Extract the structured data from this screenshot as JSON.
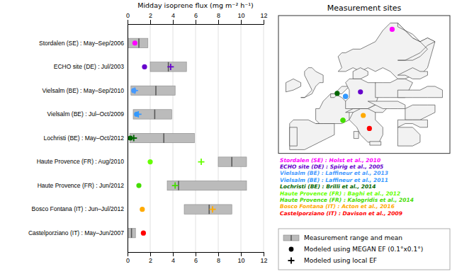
{
  "chart_data": [
    {
      "type": "bar",
      "orientation": "horizontal",
      "x_label": "Midday isoprene flux (mg m⁻² h⁻¹)",
      "categories": [
        "Stordalen (SE) : May–Sep/2006",
        "ECHO site (DE) : Jul/2003",
        "Vielsalm (BE) : May–Sep/2010",
        "Vielsalm (BE) : Jul–Oct/2009",
        "Lochristi (BE) : May–Oct/2012",
        "Haute Provence (FR) : Aug/2010",
        "Haute Provence (FR) : Jun/2012",
        "Bosco Fontana (IT) : Jun–Jul/2012",
        "Castelporziano (IT) : May–Jun/2007"
      ],
      "series": [
        {
          "name": "Measurement range and mean",
          "type": "range",
          "color": "#BBBBBB",
          "low": [
            0.0,
            2.0,
            0.3,
            0.5,
            0.2,
            8.0,
            3.5,
            5.0,
            0.0
          ],
          "high": [
            1.8,
            5.2,
            4.2,
            3.9,
            5.9,
            10.5,
            10.5,
            9.2,
            0.7
          ],
          "mean": [
            1.0,
            3.6,
            2.5,
            2.4,
            3.2,
            9.2,
            4.5,
            7.2,
            0.35
          ]
        },
        {
          "name": "Modeled using MEGAN EF (0.1°x0.1°)",
          "type": "scatter",
          "marker": "circle",
          "colors": [
            "#FF00FF",
            "#6600CC",
            "#4499FF",
            "#3399FF",
            "#006600",
            "#66FF00",
            "#44DD00",
            "#FFAA00",
            "#FF0000"
          ],
          "values": [
            0.65,
            1.5,
            0.55,
            0.8,
            0.25,
            2.0,
            1.0,
            1.3,
            1.4
          ]
        },
        {
          "name": "Modeled using local EF",
          "type": "scatter",
          "marker": "plus",
          "colors": [
            "#FF00FF",
            "#6600CC",
            "#4499FF",
            "#3399FF",
            "#006600",
            "#66FF00",
            "#44DD00",
            "#FFAA00",
            "#FF0000"
          ],
          "values": [
            null,
            3.8,
            0.65,
            0.95,
            0.55,
            6.5,
            4.2,
            7.5,
            null
          ]
        }
      ],
      "xlim": [
        0,
        12
      ],
      "xticks": [
        0,
        2,
        4,
        6,
        8,
        10,
        12
      ],
      "grid": true,
      "legend": "lower right"
    },
    {
      "type": "scatter",
      "title": "Measurement sites",
      "xlim": [
        -12,
        34
      ],
      "ylim": [
        35,
        72
      ],
      "tick_labels": false,
      "legend": "bottom",
      "series": [
        {
          "name": "Stordalen (SE) : Holst et al., 2010",
          "color": "#FF00FF",
          "x": [
            18.5
          ],
          "y": [
            68.3
          ]
        },
        {
          "name": "ECHO site (DE) : Spirig et al., 2005",
          "color": "#6600CC",
          "x": [
            10.0
          ],
          "y": [
            51.5
          ]
        },
        {
          "name": "Vielsalm (BE) : Laffineur et al., 2013",
          "color": "#4499FF",
          "x": [
            6.0
          ],
          "y": [
            50.3
          ]
        },
        {
          "name": "Vielsalm (BE) : Laffineur et al., 2011",
          "color": "#3399FF",
          "x": [
            6.0
          ],
          "y": [
            50.3
          ]
        },
        {
          "name": "Lochristi (BE) : Brilli et al., 2014",
          "color": "#006600",
          "x": [
            3.75
          ],
          "y": [
            51.1
          ]
        },
        {
          "name": "Haute Provence (FR) : Baghi et al., 2012",
          "color": "#66FF00",
          "x": [
            5.3
          ],
          "y": [
            43.9
          ]
        },
        {
          "name": "Haute Provence (FR) : Kalogridis et al., 2014",
          "color": "#44DD00",
          "x": [
            5.3
          ],
          "y": [
            43.9
          ]
        },
        {
          "name": "Bosco Fontana (IT) : Acton et al., 2016",
          "color": "#FFAA00",
          "x": [
            10.75
          ],
          "y": [
            45.2
          ]
        },
        {
          "name": "Castelporziano (IT) : Davison et al., 2009",
          "color": "#FF0000",
          "x": [
            12.4
          ],
          "y": [
            41.7
          ]
        }
      ],
      "outlines": {
        "color": "#F2F2F2",
        "polygons": [
          {
            "x": [
              4,
              5,
              4,
              5,
              6,
              8,
              10,
              12,
              14,
              16,
              18,
              20,
              22,
              24,
              26,
              28,
              30,
              28,
              26,
              24,
              22,
              20,
              18,
              16,
              14,
              12,
              10,
              8,
              6,
              4
            ],
            "y": [
              57,
              58,
              61,
              62,
              62,
              63,
              63,
              64,
              65,
              68,
              70,
              70,
              68,
              66,
              65,
              66,
              65,
              58,
              56,
              56,
              55,
              55,
              57,
              58,
              57,
              58,
              57,
              58,
              57,
              57
            ]
          },
          {
            "x": [
              20,
              22,
              24,
              26,
              28,
              30,
              28,
              26,
              24,
              22,
              20,
              20,
              22,
              24,
              26,
              28,
              26,
              24,
              22,
              20
            ],
            "y": [
              60,
              60,
              61,
              62,
              64,
              65,
              66,
              65,
              66,
              68,
              70,
              69,
              68,
              67,
              65,
              63,
              61,
              60,
              60,
              60
            ]
          },
          {
            "x": [
              8,
              10,
              12,
              12,
              10,
              8,
              8
            ],
            "y": [
              55,
              55,
              56,
              57,
              58,
              57,
              55
            ]
          },
          {
            "x": [
              -6,
              -5,
              -3,
              -2,
              -1,
              0,
              0,
              -2,
              -3,
              -4,
              -5,
              -5,
              -4,
              -3,
              -4,
              -5,
              -6
            ],
            "y": [
              50,
              50,
              51,
              53,
              54,
              54,
              56,
              57,
              58,
              58,
              57,
              56,
              54,
              52,
              51,
              50,
              50
            ]
          },
          {
            "x": [
              -10,
              -8,
              -6,
              -6,
              -8,
              -10,
              -10
            ],
            "y": [
              51.5,
              52,
              53,
              54,
              55,
              54,
              51.5
            ]
          },
          {
            "x": [
              -2,
              0,
              3,
              5,
              7,
              7,
              8,
              8,
              6,
              5,
              3,
              2,
              1,
              0,
              -1,
              -2,
              -2,
              -1,
              -2
            ],
            "y": [
              43,
              43,
              43,
              43,
              44,
              46,
              47,
              48,
              49,
              50,
              51,
              51,
              50,
              49,
              47,
              47,
              44,
              43,
              43
            ]
          },
          {
            "x": [
              -9,
              -7,
              -5,
              -3,
              -1,
              1,
              3,
              3,
              0,
              -2,
              -4,
              -8,
              -9,
              -9
            ],
            "y": [
              36,
              36,
              36,
              37,
              38,
              39,
              40,
              43,
              43,
              43,
              44,
              44,
              43,
              36
            ]
          },
          {
            "x": [
              -9,
              -7,
              -7,
              -9,
              -9
            ],
            "y": [
              37,
              37,
              42,
              42,
              37
            ]
          },
          {
            "x": [
              2,
              3,
              4,
              5,
              6,
              7,
              5,
              4,
              3,
              2,
              2
            ],
            "y": [
              50,
              50,
              51,
              51,
              52,
              53,
              53,
              52,
              51,
              51,
              50
            ]
          },
          {
            "x": [
              6,
              8,
              10,
              12,
              14,
              15,
              14,
              12,
              10,
              8,
              7,
              6,
              7,
              7,
              6,
              6
            ],
            "y": [
              47,
              47,
              47,
              47,
              48,
              51,
              54,
              54,
              55,
              55,
              55,
              54,
              52,
              50,
              49,
              47
            ]
          },
          {
            "x": [
              6,
              8,
              10,
              12,
              14,
              16,
              17,
              16,
              14,
              12,
              10,
              8,
              6
            ],
            "y": [
              46,
              47,
              47,
              47,
              48,
              48,
              47,
              46,
              46,
              46,
              46,
              46,
              46
            ]
          },
          {
            "x": [
              7,
              8,
              10,
              12,
              14,
              14,
              16,
              16,
              15,
              13,
              12,
              10,
              9,
              7
            ],
            "y": [
              44,
              46,
              47,
              47,
              46,
              44,
              42,
              40,
              38,
              38,
              38,
              40,
              42,
              44
            ]
          },
          {
            "x": [
              8.2,
              9.5,
              9.5,
              8.2,
              8.2
            ],
            "y": [
              40.9,
              40.9,
              39.0,
              39.0,
              40.9
            ]
          },
          {
            "x": [
              12.5,
              15.5,
              15.5,
              12.5,
              12.5
            ],
            "y": [
              38.2,
              38.2,
              37.2,
              37.2,
              38.2
            ]
          },
          {
            "x": [
              12,
              14,
              16,
              18,
              20,
              22,
              22,
              20,
              18,
              16,
              14,
              12
            ],
            "y": [
              49,
              49,
              49,
              49,
              49,
              48,
              47,
              47,
              47,
              47,
              48,
              49
            ]
          },
          {
            "x": [
              14,
              16,
              18,
              20,
              22,
              24,
              22,
              20,
              18,
              16,
              14,
              14
            ],
            "y": [
              50,
              50,
              50,
              50,
              50,
              54,
              55,
              55,
              54,
              54,
              54,
              50
            ]
          },
          {
            "x": [
              22,
              24,
              26,
              28,
              30,
              30,
              28,
              26,
              24,
              22,
              22
            ],
            "y": [
              44,
              44,
              44,
              45,
              46,
              48,
              48,
              48,
              48,
              47,
              44
            ]
          },
          {
            "x": [
              20,
              22,
              24,
              26,
              28,
              28,
              26,
              24,
              22,
              20,
              20
            ],
            "y": [
              42,
              43,
              43,
              42,
              42,
              44,
              44,
              44,
              44,
              44,
              42
            ]
          },
          {
            "x": [
              20,
              22,
              24,
              26,
              26,
              24,
              22,
              20,
              20,
              20,
              20
            ],
            "y": [
              37,
              37,
              37,
              38,
              40,
              42,
              42,
              42,
              40,
              38,
              37
            ]
          },
          {
            "x": [
              20,
              22,
              24,
              26,
              28,
              28,
              26,
              24,
              22,
              20
            ],
            "y": [
              56,
              57,
              58,
              57,
              57,
              56,
              55,
              55,
              56,
              56
            ]
          },
          {
            "x": [
              22,
              24,
              26,
              28,
              30,
              32,
              32,
              30,
              28,
              26,
              24,
              22,
              20,
              20,
              22
            ],
            "y": [
              50,
              50,
              50,
              50,
              50,
              50,
              52,
              53,
              53,
              52,
              52,
              52,
              52,
              50,
              50
            ]
          }
        ]
      }
    }
  ]
}
